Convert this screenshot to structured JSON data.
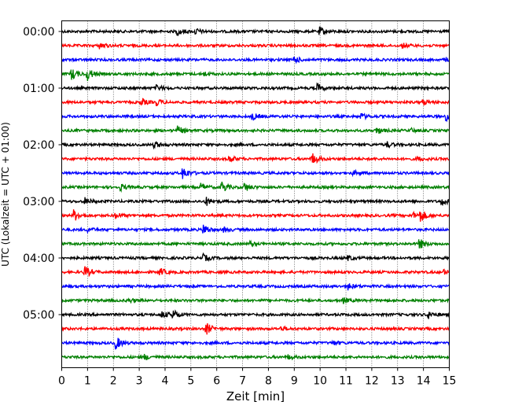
{
  "chart_data": {
    "type": "line",
    "chart_kind": "helicorder",
    "xlabel": "Zeit  [min]",
    "ylabel": "UTC (Lokalzeit = UTC + 01:00)",
    "xlim": [
      0,
      15
    ],
    "x_ticks": [
      0,
      1,
      2,
      3,
      4,
      5,
      6,
      7,
      8,
      9,
      10,
      11,
      12,
      13,
      14,
      15
    ],
    "y_tick_labels": [
      "00:00",
      "01:00",
      "02:00",
      "03:00",
      "04:00",
      "05:00"
    ],
    "vertical_grid": "dotted",
    "trace_minutes": 15,
    "traces_per_hour": 4,
    "trace_colors": [
      "#000000",
      "#ff0000",
      "#0000ff",
      "#008000"
    ],
    "traces": [
      {
        "start": "00:00",
        "events": [
          [
            4.5,
            0.5
          ],
          [
            5.2,
            0.4
          ],
          [
            10.0,
            0.6
          ]
        ]
      },
      {
        "start": "00:15",
        "events": [
          [
            1.5,
            0.4
          ],
          [
            13.2,
            0.3
          ]
        ]
      },
      {
        "start": "00:30",
        "events": [
          [
            9.0,
            0.5
          ],
          [
            14.9,
            0.3
          ]
        ]
      },
      {
        "start": "00:45",
        "events": [
          [
            0.4,
            0.8
          ],
          [
            1.0,
            1.0
          ],
          [
            5.5,
            0.3
          ]
        ]
      },
      {
        "start": "01:00",
        "events": [
          [
            3.7,
            0.4
          ],
          [
            9.9,
            0.6
          ]
        ]
      },
      {
        "start": "01:15",
        "events": [
          [
            3.1,
            0.5
          ],
          [
            3.7,
            0.4
          ],
          [
            14.0,
            0.4
          ]
        ]
      },
      {
        "start": "01:30",
        "events": [
          [
            7.4,
            0.5
          ],
          [
            11.6,
            0.4
          ],
          [
            14.9,
            0.6
          ]
        ]
      },
      {
        "start": "01:45",
        "events": [
          [
            4.5,
            0.6
          ],
          [
            12.2,
            0.5
          ],
          [
            13.5,
            0.3
          ]
        ]
      },
      {
        "start": "02:00",
        "events": [
          [
            3.6,
            0.5
          ],
          [
            12.6,
            0.4
          ]
        ]
      },
      {
        "start": "02:15",
        "events": [
          [
            6.5,
            0.5
          ],
          [
            9.7,
            0.9
          ],
          [
            13.8,
            0.3
          ]
        ]
      },
      {
        "start": "02:30",
        "events": [
          [
            4.7,
            1.0
          ],
          [
            11.3,
            0.3
          ]
        ]
      },
      {
        "start": "02:45",
        "events": [
          [
            2.3,
            0.4
          ],
          [
            5.4,
            0.5
          ],
          [
            6.2,
            0.9
          ],
          [
            7.1,
            0.6
          ]
        ]
      },
      {
        "start": "03:00",
        "events": [
          [
            0.9,
            0.5
          ],
          [
            5.6,
            0.6
          ],
          [
            14.7,
            0.6
          ]
        ]
      },
      {
        "start": "03:15",
        "events": [
          [
            0.5,
            0.8
          ],
          [
            2.1,
            0.4
          ],
          [
            13.9,
            0.9
          ],
          [
            13.6,
            0.4
          ]
        ]
      },
      {
        "start": "03:30",
        "events": [
          [
            1.0,
            0.3
          ],
          [
            5.5,
            0.8
          ],
          [
            6.3,
            0.3
          ]
        ]
      },
      {
        "start": "03:45",
        "events": [
          [
            7.3,
            0.3
          ],
          [
            13.8,
            1.0
          ]
        ]
      },
      {
        "start": "04:00",
        "events": [
          [
            5.5,
            0.5
          ],
          [
            11.1,
            0.3
          ]
        ]
      },
      {
        "start": "04:15",
        "events": [
          [
            0.9,
            0.9
          ],
          [
            3.8,
            0.6
          ],
          [
            14.8,
            0.3
          ]
        ]
      },
      {
        "start": "04:30",
        "events": [
          [
            11.1,
            0.5
          ]
        ]
      },
      {
        "start": "04:45",
        "events": [
          [
            10.9,
            0.4
          ],
          [
            2.6,
            0.3
          ]
        ]
      },
      {
        "start": "05:00",
        "events": [
          [
            4.3,
            0.7
          ],
          [
            3.9,
            0.5
          ],
          [
            14.2,
            0.5
          ]
        ]
      },
      {
        "start": "05:15",
        "events": [
          [
            5.6,
            0.9
          ],
          [
            8.5,
            0.3
          ]
        ]
      },
      {
        "start": "05:30",
        "events": [
          [
            2.1,
            1.0
          ],
          [
            10.5,
            0.3
          ]
        ]
      },
      {
        "start": "05:45",
        "events": [
          [
            3.2,
            0.4
          ],
          [
            8.8,
            0.3
          ]
        ]
      }
    ]
  }
}
